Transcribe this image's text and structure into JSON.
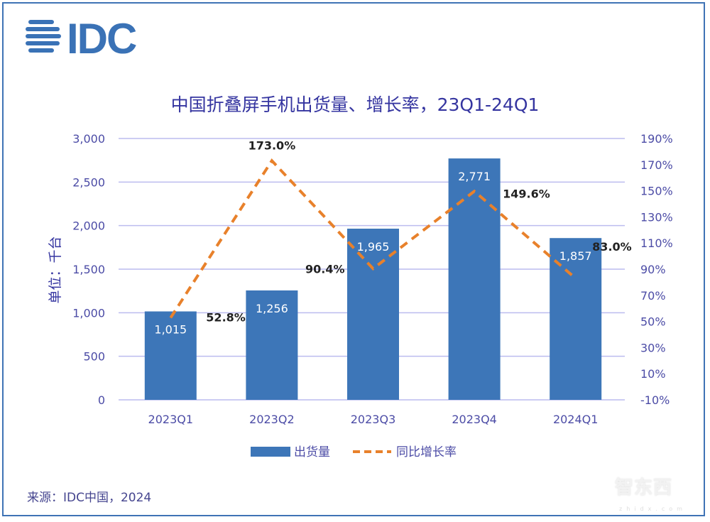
{
  "logo": "IDC",
  "watermark": {
    "text": "智东西",
    "sub": "zhidx.com"
  },
  "source": "来源：IDC中国，2024",
  "colors": {
    "bar": "#3d76b8",
    "line": "#e8812b",
    "axis_text": "#4c4ca6",
    "grid": "#bcbcef",
    "title": "#3535a0"
  },
  "chart_data": {
    "type": "bar+line",
    "title": "中国折叠屏手机出货量、增长率，23Q1-24Q1",
    "ylabel": "单位：千台",
    "categories": [
      "2023Q1",
      "2023Q2",
      "2023Q3",
      "2023Q4",
      "2024Q1"
    ],
    "series": [
      {
        "name": "出货量",
        "type": "bar",
        "axis": "left",
        "values": [
          1015,
          1256,
          1965,
          2771,
          1857
        ],
        "labels": [
          "1,015",
          "1,256",
          "1,965",
          "2,771",
          "1,857"
        ]
      },
      {
        "name": "同比增长率",
        "type": "line",
        "style": "dashed",
        "axis": "right",
        "values": [
          52.8,
          173.0,
          90.4,
          149.6,
          83.0
        ],
        "labels": [
          "52.8%",
          "173.0%",
          "90.4%",
          "149.6%",
          "83.0%"
        ]
      }
    ],
    "ylim_left": [
      0,
      3000
    ],
    "yticks_left": [
      "0",
      "500",
      "1,000",
      "1,500",
      "2,000",
      "2,500",
      "3,000"
    ],
    "ylim_right": [
      -10,
      190
    ],
    "yticks_right": [
      "-10%",
      "10%",
      "30%",
      "50%",
      "70%",
      "90%",
      "110%",
      "130%",
      "150%",
      "170%",
      "190%"
    ],
    "grid": true,
    "legend": "bottom"
  }
}
